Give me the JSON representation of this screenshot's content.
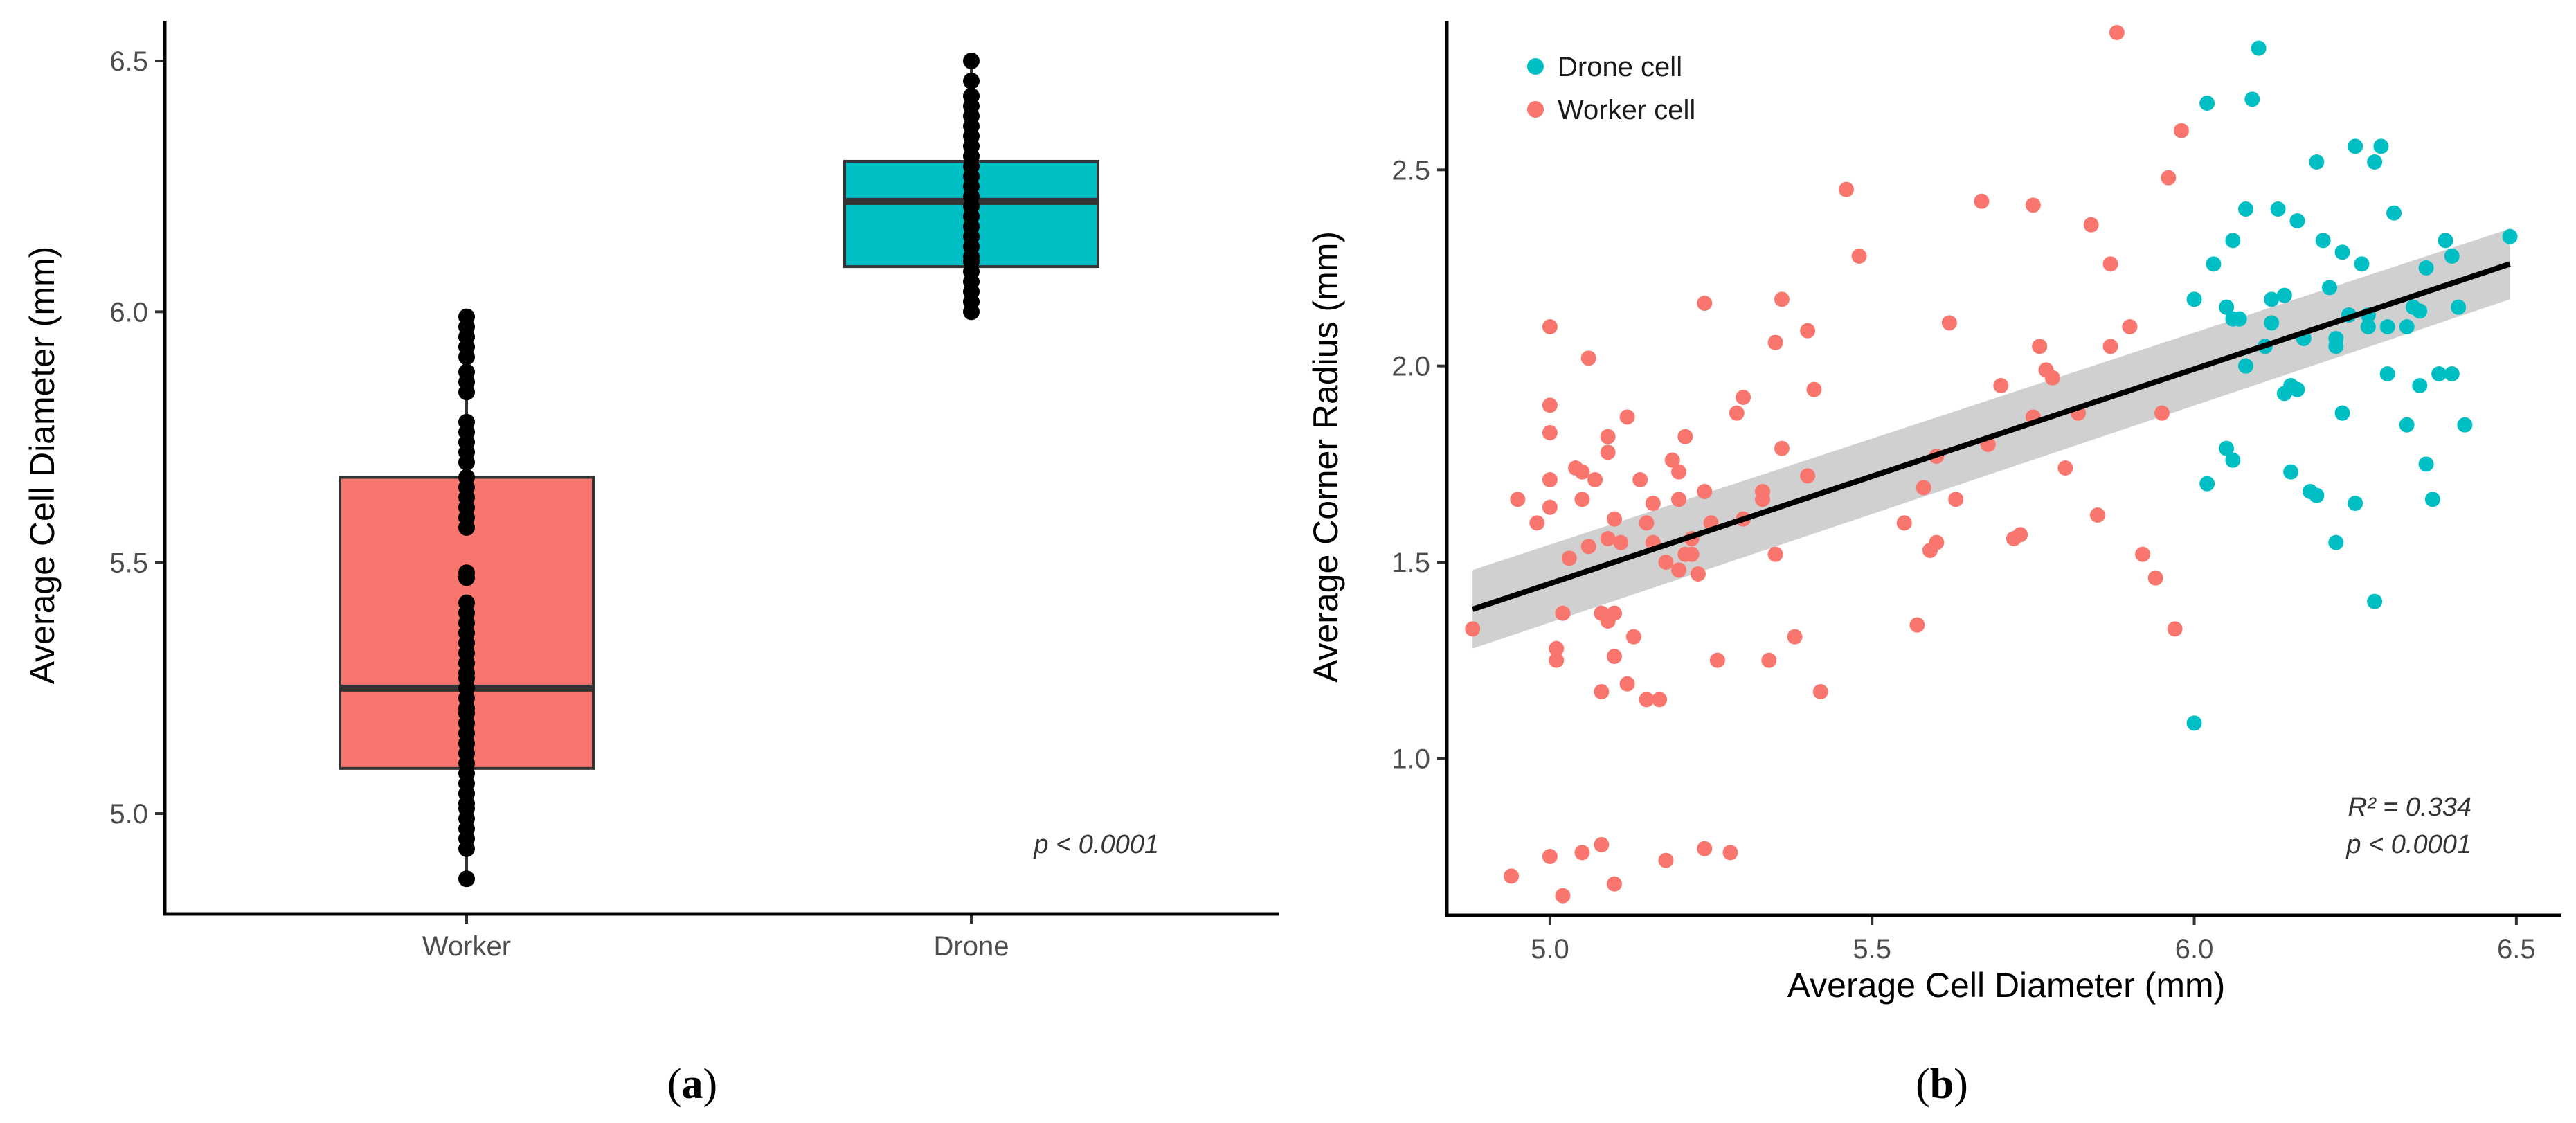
{
  "colors": {
    "worker": "#F8766D",
    "drone": "#00BFC4",
    "points_a": "#000000",
    "median": "#333333",
    "fit_line": "#000000",
    "ci_band": "#C8C8C8"
  },
  "panels": {
    "a": {
      "label_open": "(",
      "label_letter": "a",
      "label_close": ")"
    },
    "b": {
      "label_open": "(",
      "label_letter": "b",
      "label_close": ")"
    }
  },
  "chart_data": [
    {
      "type": "box",
      "ylabel": "Average Cell Diameter (mm)",
      "xlabel": "",
      "categories": [
        "Worker",
        "Drone"
      ],
      "ylim": [
        4.8,
        6.58
      ],
      "yticks": [
        5.0,
        5.5,
        6.0,
        6.5
      ],
      "ytick_labels": [
        "5.0",
        "5.5",
        "6.0",
        "6.5"
      ],
      "annotation": "p < 0.0001",
      "boxes": [
        {
          "category": "Worker",
          "q1": 5.09,
          "median": 5.25,
          "q3": 5.67,
          "whisker_low": 4.87,
          "whisker_high": 5.99,
          "points": [
            4.87,
            4.93,
            4.95,
            4.97,
            4.99,
            5.01,
            5.02,
            5.04,
            5.06,
            5.08,
            5.1,
            5.12,
            5.14,
            5.16,
            5.18,
            5.2,
            5.21,
            5.23,
            5.25,
            5.27,
            5.28,
            5.3,
            5.32,
            5.34,
            5.36,
            5.38,
            5.4,
            5.42,
            5.47,
            5.48,
            5.57,
            5.59,
            5.61,
            5.63,
            5.65,
            5.67,
            5.7,
            5.72,
            5.74,
            5.76,
            5.78,
            5.84,
            5.86,
            5.88,
            5.91,
            5.93,
            5.95,
            5.97,
            5.99
          ]
        },
        {
          "category": "Drone",
          "q1": 6.09,
          "median": 6.22,
          "q3": 6.3,
          "whisker_low": 6.0,
          "whisker_high": 6.5,
          "points": [
            6.0,
            6.02,
            6.04,
            6.06,
            6.08,
            6.1,
            6.11,
            6.13,
            6.15,
            6.17,
            6.19,
            6.21,
            6.23,
            6.25,
            6.27,
            6.29,
            6.31,
            6.33,
            6.35,
            6.37,
            6.39,
            6.41,
            6.43,
            6.46,
            6.5
          ]
        }
      ]
    },
    {
      "type": "scatter",
      "xlabel": "Average Cell Diameter (mm)",
      "ylabel": "Average Corner Radius (mm)",
      "xlim": [
        4.84,
        6.57
      ],
      "ylim": [
        0.6,
        2.88
      ],
      "xticks": [
        5.0,
        5.5,
        6.0,
        6.5
      ],
      "xtick_labels": [
        "5.0",
        "5.5",
        "6.0",
        "6.5"
      ],
      "yticks": [
        1.0,
        1.5,
        2.0,
        2.5
      ],
      "ytick_labels": [
        "1.0",
        "1.5",
        "2.0",
        "2.5"
      ],
      "legend": [
        "Drone cell",
        "Worker cell"
      ],
      "legend_position": "top-left",
      "annotation_r2": "R² = 0.334",
      "annotation_p": "p < 0.0001",
      "fit": {
        "x": [
          4.88,
          6.49
        ],
        "y": [
          1.38,
          2.26
        ],
        "ci_low": [
          1.28,
          2.17
        ],
        "ci_high": [
          1.48,
          2.35
        ]
      },
      "series": [
        {
          "name": "Drone cell",
          "x": [
            6.0,
            6.02,
            6.03,
            6.05,
            6.06,
            6.06,
            6.07,
            6.08,
            6.09,
            6.1,
            6.11,
            6.12,
            6.13,
            6.14,
            6.15,
            6.15,
            6.16,
            6.17,
            6.18,
            6.19,
            6.2,
            6.21,
            6.22,
            6.22,
            6.23,
            6.24,
            6.25,
            6.26,
            6.27,
            6.28,
            6.29,
            6.3,
            6.31,
            6.33,
            6.34,
            6.35,
            6.36,
            6.37,
            6.38,
            6.39,
            6.4,
            6.41,
            6.42,
            6.49,
            6.0,
            6.05,
            6.08,
            6.12,
            6.16,
            6.19,
            6.22,
            6.25,
            6.28,
            6.3,
            6.33,
            6.36,
            6.4,
            6.02,
            6.06,
            6.14,
            6.23,
            6.27,
            6.35
          ],
          "y": [
            2.17,
            2.67,
            2.26,
            2.15,
            2.32,
            2.12,
            2.12,
            2.4,
            2.68,
            2.81,
            2.05,
            2.17,
            2.4,
            1.93,
            1.95,
            1.73,
            2.37,
            2.07,
            1.68,
            2.52,
            2.32,
            2.2,
            2.05,
            2.07,
            2.29,
            2.13,
            2.56,
            2.26,
            2.1,
            2.52,
            2.56,
            2.1,
            2.39,
            1.85,
            2.15,
            1.95,
            1.75,
            1.66,
            1.98,
            2.32,
            2.28,
            2.15,
            1.85,
            2.33,
            1.09,
            1.79,
            2.0,
            2.11,
            1.94,
            1.67,
            1.55,
            1.65,
            1.4,
            1.98,
            2.1,
            2.25,
            1.98,
            1.7,
            1.76,
            2.18,
            1.88,
            2.13,
            2.14
          ]
        },
        {
          "name": "Worker cell",
          "x": [
            4.88,
            4.94,
            4.98,
            5.0,
            5.0,
            5.0,
            5.01,
            5.02,
            5.03,
            5.04,
            5.05,
            5.06,
            5.07,
            5.08,
            5.08,
            5.09,
            5.09,
            5.1,
            5.1,
            5.11,
            5.12,
            5.13,
            5.14,
            5.15,
            5.16,
            5.17,
            5.18,
            5.19,
            5.2,
            5.21,
            5.22,
            5.23,
            5.24,
            5.25,
            5.26,
            5.29,
            5.3,
            5.33,
            5.34,
            5.35,
            5.36,
            5.38,
            5.4,
            5.41,
            5.42,
            5.46,
            5.48,
            5.57,
            5.58,
            5.6,
            5.62,
            5.63,
            5.67,
            5.68,
            5.72,
            5.73,
            5.75,
            5.76,
            5.78,
            5.82,
            5.84,
            5.85,
            5.87,
            5.88,
            5.9,
            5.92,
            5.94,
            5.96,
            5.97,
            5.98,
            5.0,
            5.02,
            5.05,
            5.08,
            5.1,
            5.12,
            5.15,
            5.18,
            5.2,
            5.24,
            5.28,
            5.35,
            4.95,
            5.01,
            5.09,
            5.2,
            5.3,
            5.4,
            5.6,
            5.7,
            5.8,
            5.0,
            5.06,
            5.16,
            5.22,
            5.36,
            5.59,
            5.77,
            5.87,
            5.95,
            5.0,
            5.1,
            5.24,
            5.33,
            5.55,
            5.75,
            5.09,
            5.21,
            5.05
          ],
          "y": [
            1.33,
            0.7,
            1.6,
            1.71,
            1.9,
            2.1,
            1.28,
            1.37,
            1.51,
            1.74,
            1.66,
            2.02,
            1.71,
            1.37,
            1.17,
            1.56,
            1.82,
            1.37,
            1.26,
            1.55,
            1.87,
            1.31,
            1.71,
            1.6,
            1.55,
            1.15,
            1.5,
            1.76,
            1.66,
            1.82,
            1.52,
            1.47,
            2.16,
            1.6,
            1.25,
            1.88,
            1.92,
            1.66,
            1.25,
            2.06,
            2.17,
            1.31,
            2.09,
            1.94,
            1.17,
            2.45,
            2.28,
            1.34,
            1.69,
            1.77,
            2.11,
            1.66,
            2.42,
            1.8,
            1.56,
            1.57,
            2.41,
            2.05,
            1.97,
            1.88,
            2.36,
            1.62,
            2.26,
            2.85,
            2.1,
            1.52,
            1.46,
            2.48,
            1.33,
            2.6,
            0.75,
            0.65,
            0.76,
            0.78,
            0.68,
            1.19,
            1.15,
            0.74,
            1.48,
            0.77,
            0.76,
            1.52,
            1.66,
            1.25,
            1.78,
            1.73,
            1.61,
            1.72,
            1.55,
            1.95,
            1.74,
            1.83,
            1.54,
            1.65,
            1.56,
            1.79,
            1.53,
            1.99,
            2.05,
            1.88,
            1.64,
            1.61,
            1.68,
            1.68,
            1.6,
            1.87,
            1.35,
            1.52,
            1.73
          ]
        }
      ]
    }
  ]
}
